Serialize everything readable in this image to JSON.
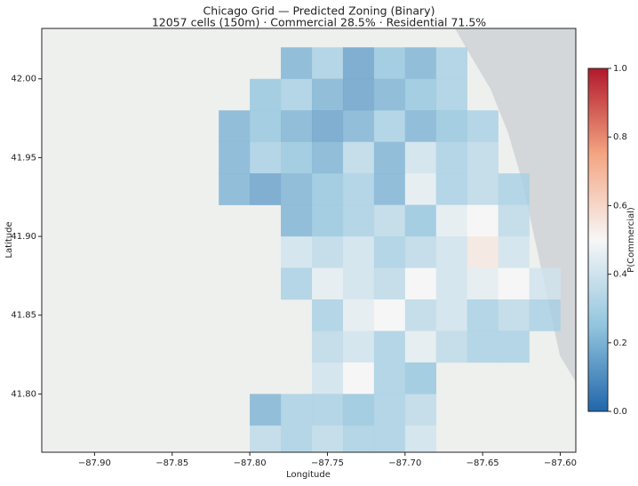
{
  "chart_data": {
    "type": "heatmap",
    "title": "Chicago Grid — Predicted Zoning (Binary)",
    "subtitle": "12057 cells (150m) · Commercial 28.5% · Residential 71.5%",
    "x_label": "Longitude",
    "y_label": "Latitude",
    "colorbar_label": "P(Commercial)",
    "colormap": "RdBu_r",
    "xlim": [
      -87.934,
      -87.59
    ],
    "ylim": [
      41.763,
      42.032
    ],
    "clim": [
      0,
      1
    ],
    "xticks": [
      {
        "value": -87.9,
        "label": "−87.90"
      },
      {
        "value": -87.85,
        "label": "−87.85"
      },
      {
        "value": -87.8,
        "label": "−87.80"
      },
      {
        "value": -87.75,
        "label": "−87.75"
      },
      {
        "value": -87.7,
        "label": "−87.70"
      },
      {
        "value": -87.65,
        "label": "−87.65"
      },
      {
        "value": -87.6,
        "label": "−87.60"
      }
    ],
    "yticks": [
      {
        "value": 41.8,
        "label": "41.80"
      },
      41.85,
      {
        "value": 41.9,
        "label": "41.90"
      },
      41.95,
      {
        "value": 42,
        "label": "42.00"
      }
    ],
    "cticks": [
      {
        "value": 0,
        "label": "0.0"
      },
      0.2,
      0.4,
      0.6,
      0.8,
      {
        "value": 1,
        "label": "1.0"
      }
    ],
    "x": [
      -87.81,
      -87.79,
      -87.77,
      -87.75,
      -87.73,
      -87.71,
      -87.69,
      -87.67,
      -87.65,
      -87.63,
      -87.61
    ],
    "y": [
      42.01,
      41.99,
      41.97,
      41.95,
      41.93,
      41.91,
      41.89,
      41.87,
      41.85,
      41.83,
      41.81,
      41.79,
      41.77
    ],
    "values": [
      [
        null,
        null,
        0.2,
        0.3,
        0.15,
        0.25,
        0.2,
        0.3,
        null,
        null,
        null
      ],
      [
        null,
        0.25,
        0.3,
        0.2,
        0.15,
        0.2,
        0.25,
        0.3,
        null,
        null,
        null
      ],
      [
        0.2,
        0.25,
        0.2,
        0.15,
        0.2,
        0.3,
        0.2,
        0.25,
        0.3,
        null,
        null
      ],
      [
        0.2,
        0.3,
        0.25,
        0.2,
        0.35,
        0.2,
        0.4,
        0.3,
        0.35,
        null,
        null
      ],
      [
        0.2,
        0.15,
        0.2,
        0.25,
        0.3,
        0.2,
        0.45,
        0.3,
        0.35,
        0.3,
        null
      ],
      [
        null,
        null,
        0.2,
        0.25,
        0.3,
        0.35,
        0.25,
        0.45,
        0.5,
        0.35,
        null
      ],
      [
        null,
        null,
        0.4,
        0.35,
        0.4,
        0.3,
        0.35,
        0.4,
        0.55,
        0.4,
        null
      ],
      [
        null,
        null,
        0.3,
        0.45,
        0.4,
        0.35,
        0.5,
        0.4,
        0.45,
        0.5,
        0.4
      ],
      [
        null,
        null,
        null,
        0.3,
        0.45,
        0.5,
        0.35,
        0.4,
        0.3,
        0.35,
        0.3
      ],
      [
        null,
        null,
        null,
        0.35,
        0.4,
        0.3,
        0.45,
        0.35,
        0.3,
        0.3,
        null
      ],
      [
        null,
        null,
        null,
        0.4,
        0.5,
        0.3,
        0.25,
        null,
        null,
        null,
        null
      ],
      [
        null,
        0.2,
        0.3,
        0.3,
        0.25,
        0.3,
        0.35,
        null,
        null,
        null,
        null
      ],
      [
        null,
        0.35,
        0.3,
        0.35,
        0.3,
        0.3,
        0.4,
        null,
        null,
        null,
        null
      ]
    ]
  }
}
